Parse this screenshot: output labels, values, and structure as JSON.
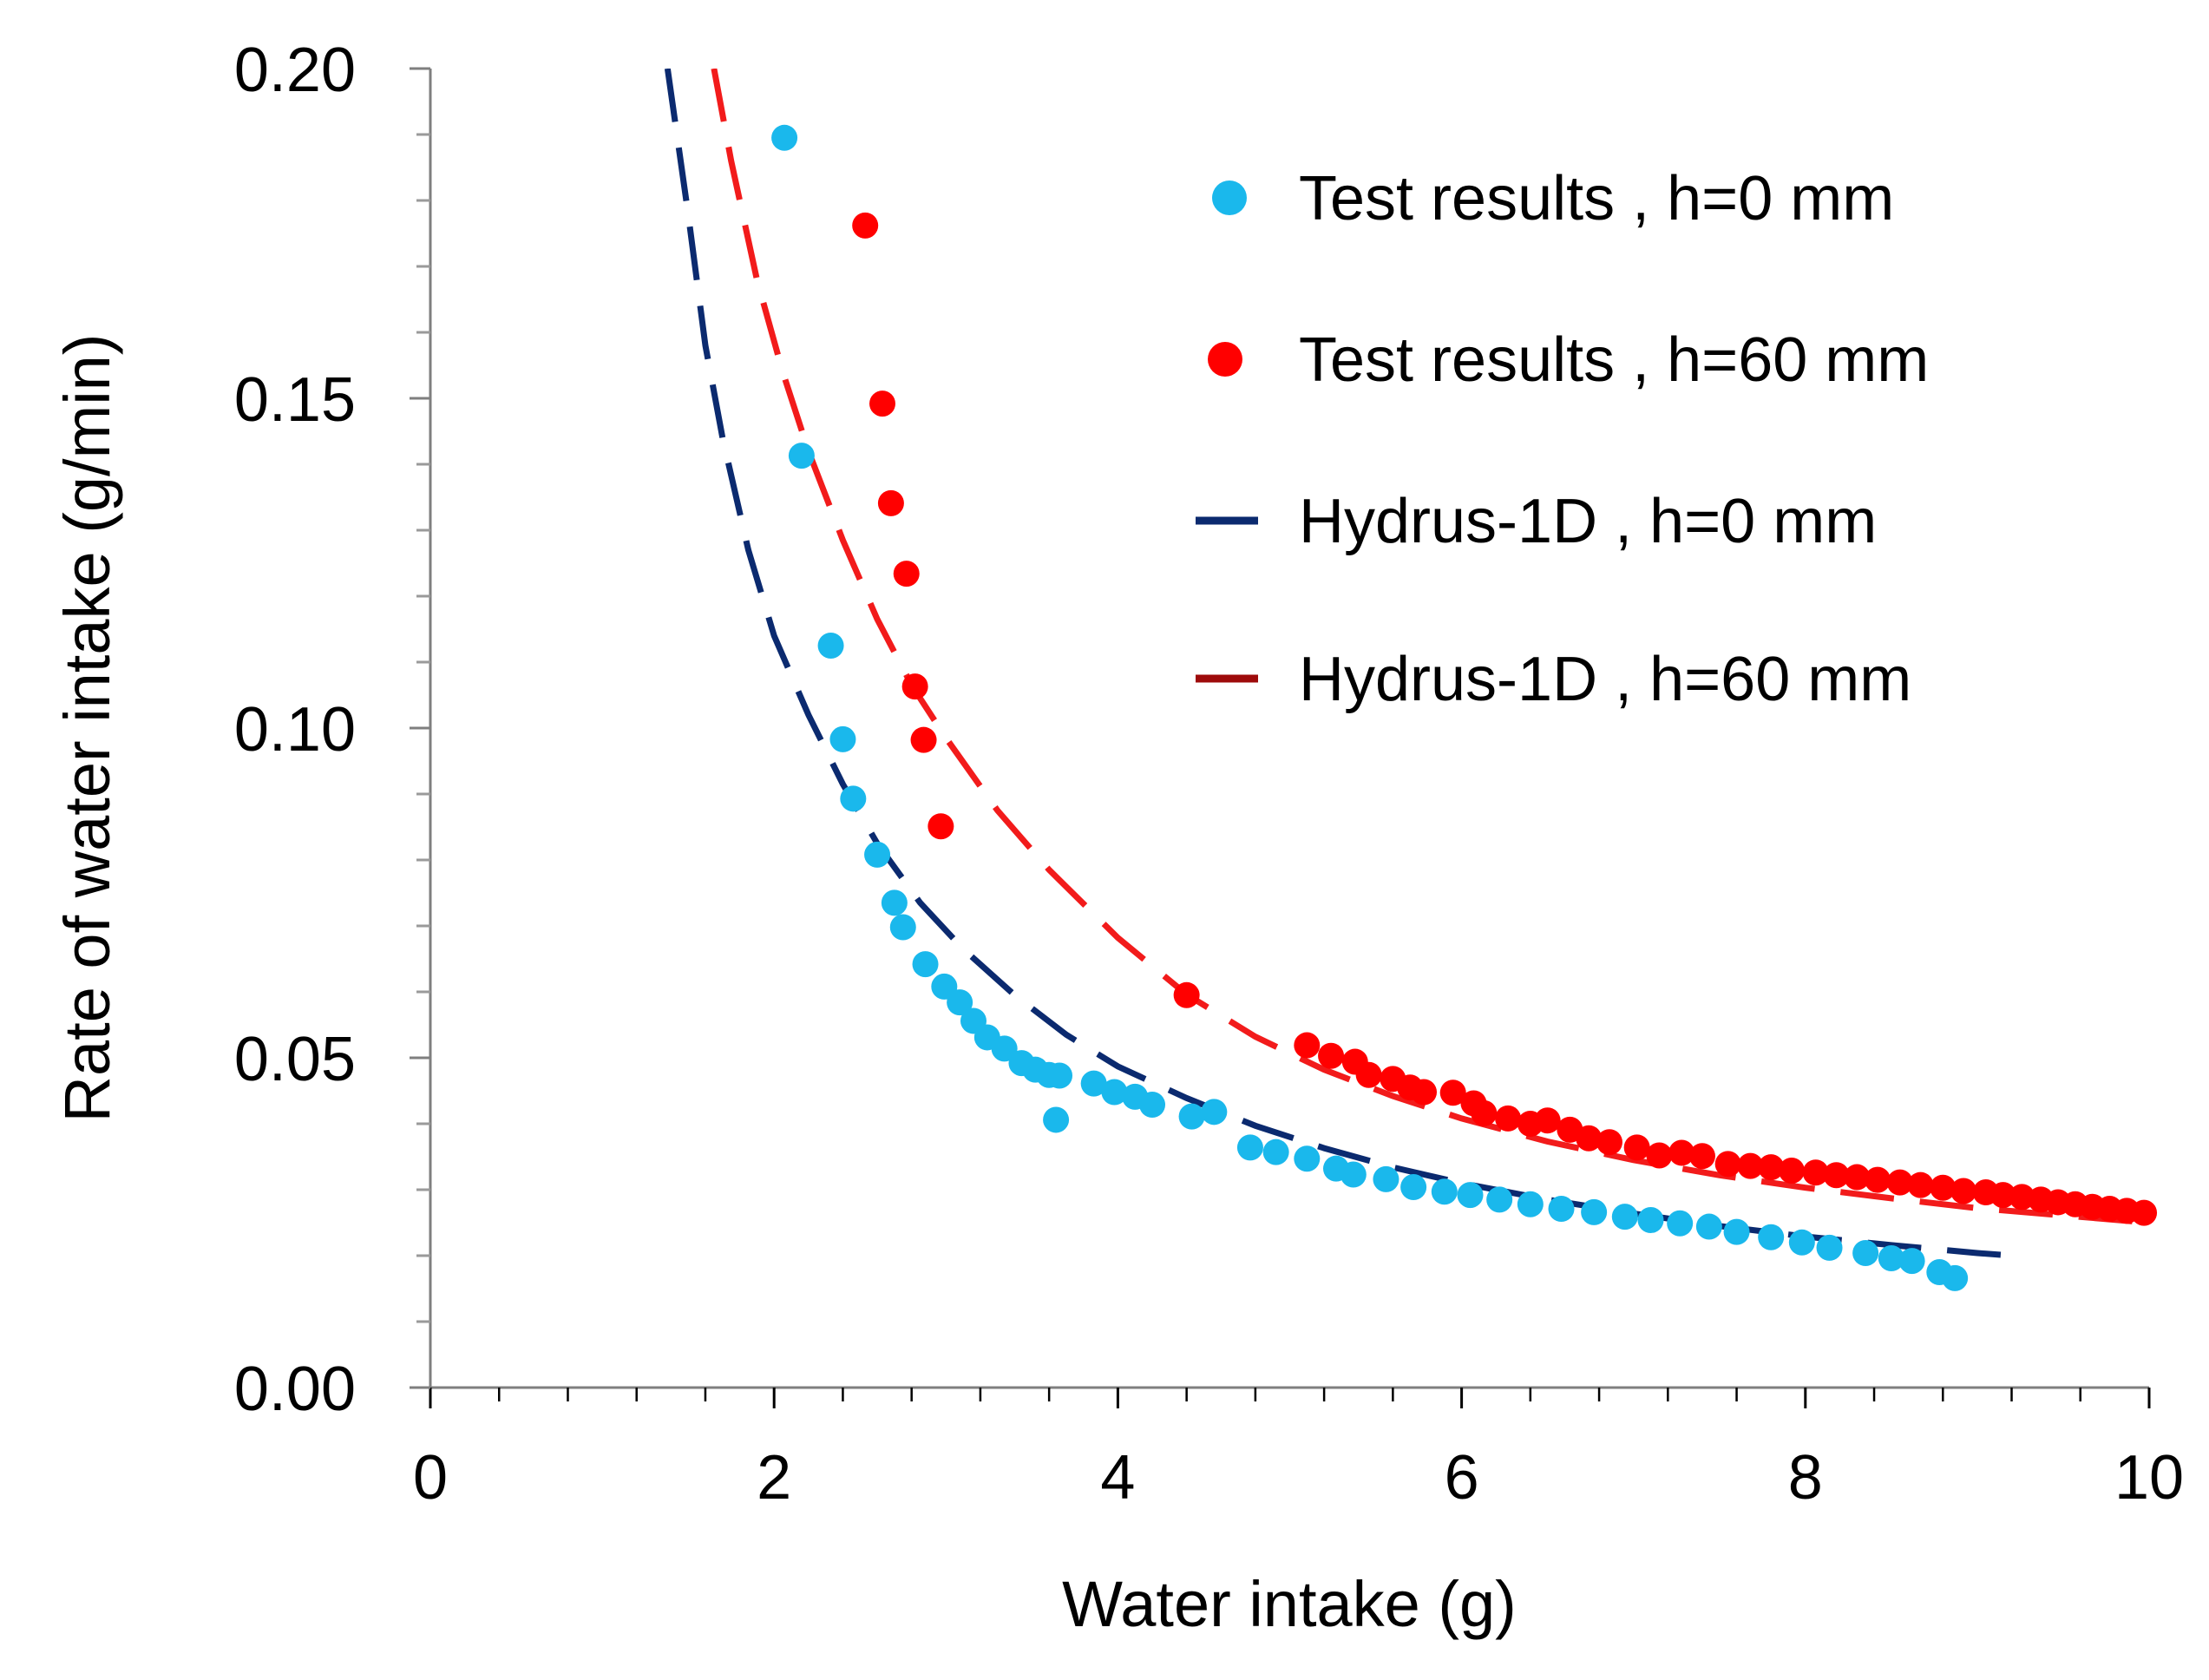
{
  "chart_data": {
    "type": "scatter",
    "title": "",
    "xlabel": "Water intake (g)",
    "ylabel": "Rate of water intake (g/min)",
    "xlim": [
      0,
      10
    ],
    "ylim": [
      0,
      0.2
    ],
    "x_ticks": [
      0,
      2,
      4,
      6,
      8,
      10
    ],
    "x_tick_labels": [
      "0",
      "2",
      "4",
      "6",
      "8",
      "10"
    ],
    "y_ticks": [
      0,
      0.05,
      0.1,
      0.15,
      0.2
    ],
    "y_tick_labels": [
      "0.00",
      "0.05",
      "0.10",
      "0.15",
      "0.20"
    ],
    "grid": false,
    "legend_position": "top-right",
    "series": [
      {
        "name": "Test results , h=0 mm",
        "kind": "points",
        "color": "#1ab8ec",
        "points": [
          [
            2.06,
            0.1895
          ],
          [
            2.16,
            0.1413
          ],
          [
            2.33,
            0.1125
          ],
          [
            2.4,
            0.0983
          ],
          [
            2.46,
            0.0893
          ],
          [
            2.6,
            0.0808
          ],
          [
            2.7,
            0.0735
          ],
          [
            2.75,
            0.0698
          ],
          [
            2.88,
            0.0642
          ],
          [
            2.99,
            0.0608
          ],
          [
            3.08,
            0.0584
          ],
          [
            3.16,
            0.0556
          ],
          [
            3.24,
            0.0531
          ],
          [
            3.34,
            0.0514
          ],
          [
            3.44,
            0.0492
          ],
          [
            3.52,
            0.0482
          ],
          [
            3.6,
            0.0474
          ],
          [
            3.66,
            0.0473
          ],
          [
            3.64,
            0.0406
          ],
          [
            3.86,
            0.0461
          ],
          [
            3.98,
            0.0448
          ],
          [
            4.1,
            0.0441
          ],
          [
            4.2,
            0.0429
          ],
          [
            4.43,
            0.0411
          ],
          [
            4.56,
            0.0418
          ],
          [
            4.77,
            0.0364
          ],
          [
            4.92,
            0.0357
          ],
          [
            5.1,
            0.0347
          ],
          [
            5.27,
            0.0332
          ],
          [
            5.37,
            0.0323
          ],
          [
            5.56,
            0.0316
          ],
          [
            5.72,
            0.0304
          ],
          [
            5.9,
            0.0297
          ],
          [
            6.05,
            0.0292
          ],
          [
            6.22,
            0.0285
          ],
          [
            6.4,
            0.0278
          ],
          [
            6.58,
            0.0271
          ],
          [
            6.77,
            0.0266
          ],
          [
            6.95,
            0.0259
          ],
          [
            7.1,
            0.0254
          ],
          [
            7.27,
            0.0249
          ],
          [
            7.44,
            0.0244
          ],
          [
            7.6,
            0.0236
          ],
          [
            7.8,
            0.0228
          ],
          [
            7.98,
            0.022
          ],
          [
            8.14,
            0.0212
          ],
          [
            8.35,
            0.0204
          ],
          [
            8.5,
            0.0196
          ],
          [
            8.62,
            0.0192
          ],
          [
            8.78,
            0.0175
          ],
          [
            8.87,
            0.0166
          ]
        ]
      },
      {
        "name": "Test results , h=60 mm",
        "kind": "points",
        "color": "#ff0000",
        "points": [
          [
            2.53,
            0.1762
          ],
          [
            2.63,
            0.1492
          ],
          [
            2.68,
            0.1341
          ],
          [
            2.77,
            0.1234
          ],
          [
            2.82,
            0.1063
          ],
          [
            2.87,
            0.0982
          ],
          [
            2.97,
            0.0851
          ],
          [
            4.4,
            0.0595
          ],
          [
            5.1,
            0.0519
          ],
          [
            5.24,
            0.0503
          ],
          [
            5.38,
            0.0494
          ],
          [
            5.46,
            0.0474
          ],
          [
            5.6,
            0.0468
          ],
          [
            5.7,
            0.0455
          ],
          [
            5.78,
            0.0448
          ],
          [
            5.95,
            0.0447
          ],
          [
            6.07,
            0.0431
          ],
          [
            6.13,
            0.0416
          ],
          [
            6.27,
            0.0408
          ],
          [
            6.4,
            0.04
          ],
          [
            6.5,
            0.0405
          ],
          [
            6.63,
            0.0391
          ],
          [
            6.74,
            0.0378
          ],
          [
            6.86,
            0.0372
          ],
          [
            7.02,
            0.0364
          ],
          [
            7.15,
            0.0352
          ],
          [
            7.28,
            0.0356
          ],
          [
            7.4,
            0.0351
          ],
          [
            7.55,
            0.0339
          ],
          [
            7.68,
            0.0336
          ],
          [
            7.8,
            0.0334
          ],
          [
            7.92,
            0.0329
          ],
          [
            8.06,
            0.0326
          ],
          [
            8.18,
            0.0322
          ],
          [
            8.3,
            0.0319
          ],
          [
            8.42,
            0.0315
          ],
          [
            8.55,
            0.0311
          ],
          [
            8.67,
            0.0307
          ],
          [
            8.8,
            0.0303
          ],
          [
            8.92,
            0.0298
          ],
          [
            9.05,
            0.0296
          ],
          [
            9.15,
            0.0292
          ],
          [
            9.26,
            0.0289
          ],
          [
            9.37,
            0.0285
          ],
          [
            9.47,
            0.0281
          ],
          [
            9.57,
            0.0278
          ],
          [
            9.67,
            0.0274
          ],
          [
            9.77,
            0.0271
          ],
          [
            9.87,
            0.0268
          ],
          [
            9.97,
            0.0265
          ]
        ]
      },
      {
        "name": "Hydrus-1D , h=0 mm",
        "kind": "dashed-line",
        "color": "#0b2a6f",
        "points": [
          [
            1.38,
            0.2
          ],
          [
            1.5,
            0.178
          ],
          [
            1.6,
            0.158
          ],
          [
            1.7,
            0.144
          ],
          [
            1.85,
            0.127
          ],
          [
            2.0,
            0.114
          ],
          [
            2.2,
            0.102
          ],
          [
            2.4,
            0.0915
          ],
          [
            2.6,
            0.0825
          ],
          [
            2.85,
            0.0735
          ],
          [
            3.1,
            0.0665
          ],
          [
            3.4,
            0.0595
          ],
          [
            3.7,
            0.0535
          ],
          [
            4.0,
            0.0487
          ],
          [
            4.4,
            0.0439
          ],
          [
            4.8,
            0.0397
          ],
          [
            5.2,
            0.0363
          ],
          [
            5.6,
            0.0334
          ],
          [
            6.0,
            0.031
          ],
          [
            6.5,
            0.0285
          ],
          [
            7.0,
            0.0264
          ],
          [
            7.5,
            0.0245
          ],
          [
            8.0,
            0.0229
          ],
          [
            8.5,
            0.0216
          ],
          [
            9.0,
            0.0204
          ],
          [
            9.2,
            0.02
          ]
        ]
      },
      {
        "name": "Hydrus-1D , h=60 mm",
        "kind": "dashed-line",
        "color": "#f21b1b",
        "legend_color": "#9e0b0b",
        "points": [
          [
            1.65,
            0.2
          ],
          [
            1.75,
            0.186
          ],
          [
            1.9,
            0.168
          ],
          [
            2.05,
            0.154
          ],
          [
            2.2,
            0.142
          ],
          [
            2.4,
            0.1285
          ],
          [
            2.6,
            0.1165
          ],
          [
            2.8,
            0.1065
          ],
          [
            3.0,
            0.0985
          ],
          [
            3.3,
            0.0875
          ],
          [
            3.6,
            0.0785
          ],
          [
            4.0,
            0.0682
          ],
          [
            4.4,
            0.0596
          ],
          [
            4.8,
            0.0532
          ],
          [
            5.2,
            0.0482
          ],
          [
            5.6,
            0.0442
          ],
          [
            6.0,
            0.0408
          ],
          [
            6.5,
            0.0373
          ],
          [
            7.0,
            0.0345
          ],
          [
            7.5,
            0.0322
          ],
          [
            8.0,
            0.0303
          ],
          [
            8.5,
            0.0287
          ],
          [
            9.0,
            0.0272
          ],
          [
            9.5,
            0.0261
          ],
          [
            10.0,
            0.025
          ]
        ]
      }
    ]
  }
}
